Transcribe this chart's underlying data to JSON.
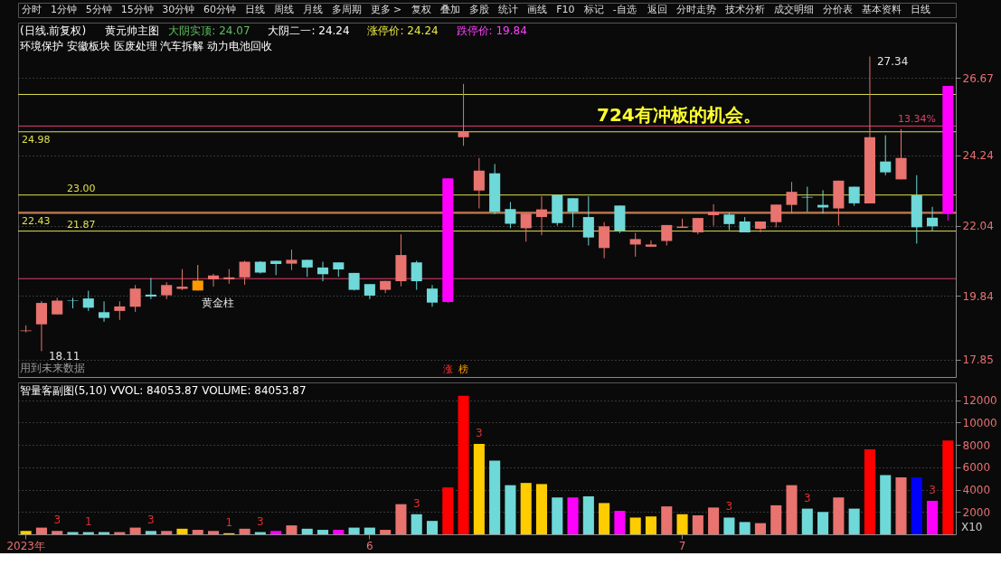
{
  "chart_data": [
    {
      "type": "other",
      "annotations": [
        "分时",
        "1分钟",
        "5分钟",
        "15分钟",
        "30分钟",
        "60分钟",
        "日线",
        "周线",
        "月线",
        "多周期",
        "更多 >",
        "复权",
        "叠加",
        "多股",
        "统计",
        "画线",
        "F10",
        "标记",
        "-自选",
        "返回",
        "分时走势",
        "技术分析",
        "成交明细",
        "分价表",
        "基本资料",
        "日线"
      ]
    },
    {
      "type": "candlestick",
      "title": "(日线.前复权)",
      "subtitle": "环境保护 安徽板块 医废处理 汽车拆解 动力电池回收",
      "categories": [
        null,
        null,
        null,
        null,
        null,
        null,
        null,
        null,
        null,
        null,
        null,
        null,
        null,
        null,
        null,
        null,
        null,
        null,
        null,
        null,
        null,
        null,
        null,
        null,
        null,
        null,
        null,
        null,
        null,
        null,
        null,
        null,
        null,
        null,
        null,
        null,
        null,
        null,
        null,
        null,
        null,
        null,
        null,
        null,
        null,
        null,
        null,
        null,
        null,
        null,
        null,
        null,
        null,
        null,
        null,
        null,
        null,
        null,
        null,
        null
      ],
      "ohlc": [
        [
          18.74,
          18.92,
          18.7,
          18.76
        ],
        [
          18.95,
          19.68,
          18.11,
          19.62
        ],
        [
          19.26,
          19.78,
          19.26,
          19.69
        ],
        [
          19.71,
          19.78,
          19.45,
          19.69
        ],
        [
          19.76,
          20.0,
          19.37,
          19.47
        ],
        [
          19.33,
          19.67,
          19.03,
          19.15
        ],
        [
          19.37,
          19.67,
          19.09,
          19.51
        ],
        [
          19.5,
          20.18,
          19.34,
          20.07
        ],
        [
          19.88,
          20.4,
          19.74,
          19.82
        ],
        [
          19.86,
          20.27,
          19.74,
          20.18
        ],
        [
          20.06,
          20.68,
          20.02,
          20.13
        ],
        [
          20.01,
          20.81,
          20.01,
          20.32
        ],
        [
          20.36,
          20.53,
          20.13,
          20.48
        ],
        [
          20.36,
          20.68,
          20.22,
          20.42
        ],
        [
          20.42,
          20.94,
          20.19,
          20.91
        ],
        [
          20.91,
          20.93,
          20.54,
          20.57
        ],
        [
          20.94,
          20.94,
          20.49,
          20.84
        ],
        [
          20.85,
          21.29,
          20.65,
          20.97
        ],
        [
          20.97,
          20.97,
          20.44,
          20.73
        ],
        [
          20.73,
          20.91,
          20.3,
          20.52
        ],
        [
          20.89,
          20.89,
          20.44,
          20.67
        ],
        [
          20.56,
          20.56,
          20.01,
          20.03
        ],
        [
          20.21,
          20.21,
          19.74,
          19.85
        ],
        [
          20.03,
          20.31,
          19.93,
          20.31
        ],
        [
          20.3,
          21.77,
          20.14,
          21.12
        ],
        [
          20.89,
          20.94,
          20.03,
          20.3
        ],
        [
          20.07,
          20.18,
          19.5,
          19.63
        ],
        [
          19.65,
          23.52,
          19.62,
          23.52
        ],
        [
          24.81,
          26.48,
          24.54,
          24.98
        ],
        [
          23.14,
          24.16,
          22.58,
          23.76
        ],
        [
          23.68,
          23.97,
          22.4,
          22.47
        ],
        [
          22.56,
          22.78,
          21.96,
          22.1
        ],
        [
          21.96,
          22.42,
          21.54,
          22.42
        ],
        [
          22.31,
          22.96,
          21.74,
          22.55
        ],
        [
          23.0,
          23.0,
          22.04,
          22.12
        ],
        [
          22.9,
          22.9,
          21.99,
          22.47
        ],
        [
          22.31,
          22.96,
          21.42,
          21.67
        ],
        [
          21.34,
          22.15,
          21.02,
          22.02
        ],
        [
          22.67,
          22.67,
          21.81,
          21.88
        ],
        [
          21.45,
          21.81,
          21.07,
          21.62
        ],
        [
          21.38,
          21.58,
          21.38,
          21.45
        ],
        [
          21.56,
          22.06,
          21.42,
          22.06
        ],
        [
          21.97,
          22.26,
          21.97,
          22.01
        ],
        [
          21.83,
          22.28,
          21.77,
          22.28
        ],
        [
          22.37,
          22.71,
          22.04,
          22.47
        ],
        [
          22.39,
          22.45,
          21.9,
          22.09
        ],
        [
          22.17,
          22.31,
          21.83,
          21.83
        ],
        [
          21.94,
          22.17,
          21.83,
          22.17
        ],
        [
          22.15,
          22.7,
          21.99,
          22.7
        ],
        [
          22.69,
          23.41,
          22.42,
          23.1
        ],
        [
          22.94,
          23.26,
          22.47,
          22.92
        ],
        [
          22.69,
          23.15,
          22.42,
          22.61
        ],
        [
          22.58,
          23.45,
          22.04,
          23.45
        ],
        [
          23.26,
          23.26,
          22.66,
          22.74
        ],
        [
          22.74,
          27.34,
          22.74,
          24.81
        ],
        [
          24.05,
          24.87,
          23.62,
          23.71
        ],
        [
          23.49,
          25.06,
          23.49,
          24.16
        ],
        [
          22.99,
          23.62,
          21.48,
          21.99
        ],
        [
          22.29,
          22.63,
          21.86,
          22.02
        ],
        [
          22.42,
          26.42,
          22.2,
          26.42
        ]
      ],
      "colors": [
        "#e8736f",
        "#e8736f",
        "#e8736f",
        "#6fd8d8",
        "#6fd8d8",
        "#6fd8d8",
        "#e8736f",
        "#e8736f",
        "#6fd8d8",
        "#e8736f",
        "#e8736f",
        "#ff9900",
        "#e8736f",
        "#e8736f",
        "#e8736f",
        "#6fd8d8",
        "#6fd8d8",
        "#e8736f",
        "#6fd8d8",
        "#6fd8d8",
        "#6fd8d8",
        "#6fd8d8",
        "#6fd8d8",
        "#e8736f",
        "#e8736f",
        "#6fd8d8",
        "#6fd8d8",
        "#ff00ff",
        "#e8736f",
        "#e8736f",
        "#6fd8d8",
        "#6fd8d8",
        "#e8736f",
        "#e8736f",
        "#6fd8d8",
        "#6fd8d8",
        "#6fd8d8",
        "#e8736f",
        "#6fd8d8",
        "#e8736f",
        "#e8736f",
        "#e8736f",
        "#e8736f",
        "#e8736f",
        "#e8736f",
        "#6fd8d8",
        "#6fd8d8",
        "#e8736f",
        "#e8736f",
        "#e8736f",
        "#6fd8d8",
        "#6fd8d8",
        "#e8736f",
        "#6fd8d8",
        "#e8736f",
        "#6fd8d8",
        "#e8736f",
        "#6fd8d8",
        "#6fd8d8",
        "#ff00ff"
      ],
      "ylim": [
        17.3,
        28.4
      ],
      "yticks": [
        17.85,
        19.84,
        22.04,
        24.24,
        26.67
      ],
      "tick_labels": "y",
      "grid": "y",
      "ref_lines": [
        {
          "axis": "y",
          "value": 26.15,
          "color": "#e0e050"
        },
        {
          "axis": "y",
          "value": 25.16,
          "color": "#e04070"
        },
        {
          "axis": "y",
          "value": 24.98,
          "label": "24.98",
          "color": "#e0e050"
        },
        {
          "axis": "y",
          "value": 23.0,
          "label": "23.00",
          "color": "#e0e050"
        },
        {
          "axis": "y",
          "value": 22.43,
          "label": "22.43",
          "color": "#e0e050"
        },
        {
          "axis": "y",
          "value": 21.87,
          "label": "21.87",
          "color": "#e0e050"
        },
        {
          "axis": "y",
          "value": 22.47,
          "color": "#e04070"
        },
        {
          "axis": "y",
          "value": 20.38,
          "color": "#e04070"
        }
      ],
      "annotations": [
        "黄元帅主图",
        "大阴实顶: 24.07",
        "大阴二一: 24.24",
        "涨停价: 24.24",
        "跌停价: 19.84",
        "用到未来数据",
        "724有冲板的机会。",
        "涨",
        "榜",
        "13.34%",
        "18.11",
        "27.34",
        "黄金柱"
      ]
    },
    {
      "type": "bar",
      "title": "智量客副图(5,10) VVOL: 84053.87 VOLUME: 84053.87",
      "categories": [
        "2023年",
        null,
        null,
        null,
        null,
        null,
        null,
        null,
        null,
        null,
        null,
        null,
        null,
        null,
        null,
        null,
        null,
        null,
        null,
        null,
        null,
        null,
        "6",
        null,
        null,
        null,
        null,
        null,
        null,
        null,
        null,
        null,
        null,
        null,
        null,
        null,
        null,
        null,
        null,
        null,
        null,
        null,
        "7",
        null,
        null,
        null,
        null,
        null,
        null,
        null,
        null,
        null,
        null,
        null,
        null,
        null,
        null,
        null,
        null,
        null
      ],
      "values": [
        300,
        600,
        300,
        200,
        200,
        200,
        200,
        600,
        300,
        300,
        500,
        400,
        300,
        100,
        500,
        200,
        300,
        800,
        500,
        400,
        400,
        600,
        600,
        400,
        2700,
        1800,
        1200,
        4200,
        12400,
        8100,
        6600,
        4400,
        4600,
        4500,
        3300,
        3300,
        3400,
        2800,
        2100,
        1500,
        1600,
        2500,
        1800,
        1700,
        2400,
        1500,
        1100,
        1000,
        2600,
        4400,
        2300,
        2000,
        3300,
        2300,
        7600,
        5300,
        5100,
        5100,
        3000,
        8400
      ],
      "colors": [
        "#ffcc00",
        "#e8736f",
        "#e8736f",
        "#6fd8d8",
        "#6fd8d8",
        "#6fd8d8",
        "#e8736f",
        "#e8736f",
        "#6fd8d8",
        "#e8736f",
        "#ffcc00",
        "#e8736f",
        "#e8736f",
        "#ffcc00",
        "#e8736f",
        "#6fd8d8",
        "#ff00ff",
        "#e8736f",
        "#6fd8d8",
        "#6fd8d8",
        "#ff00ff",
        "#6fd8d8",
        "#6fd8d8",
        "#e8736f",
        "#e8736f",
        "#6fd8d8",
        "#6fd8d8",
        "#ff0000",
        "#ff0000",
        "#ffcc00",
        "#6fd8d8",
        "#6fd8d8",
        "#ffcc00",
        "#ffcc00",
        "#6fd8d8",
        "#ff00ff",
        "#6fd8d8",
        "#ffcc00",
        "#ff00ff",
        "#ffcc00",
        "#ffcc00",
        "#e8736f",
        "#ffcc00",
        "#e8736f",
        "#e8736f",
        "#6fd8d8",
        "#6fd8d8",
        "#e8736f",
        "#e8736f",
        "#e8736f",
        "#6fd8d8",
        "#6fd8d8",
        "#e8736f",
        "#6fd8d8",
        "#ff0000",
        "#6fd8d8",
        "#e8736f",
        "#0000ff",
        "#ff00ff",
        "#ff0000"
      ],
      "ylim": [
        0,
        13600
      ],
      "yticks": [
        2000,
        4000,
        6000,
        8000,
        10000,
        12000
      ],
      "grid": "y",
      "annotations": [
        "3",
        "1",
        "3",
        "1",
        "3",
        "3",
        "3",
        "3",
        "3",
        "3",
        "X10"
      ]
    }
  ]
}
